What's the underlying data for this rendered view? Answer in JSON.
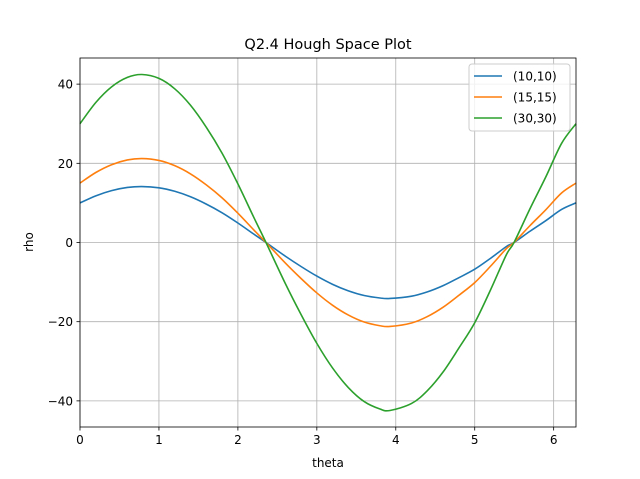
{
  "chart_data": {
    "type": "line",
    "title": "Q2.4 Hough Space Plot",
    "xlabel": "theta",
    "ylabel": "rho",
    "xlim": [
      0,
      6.283
    ],
    "ylim": [
      -46.6,
      46.6
    ],
    "grid": true,
    "legend_position": "top-right",
    "xticks": [
      0,
      1,
      2,
      3,
      4,
      5,
      6
    ],
    "xtick_labels": [
      "0",
      "1",
      "2",
      "3",
      "4",
      "5",
      "6"
    ],
    "yticks": [
      -40,
      -20,
      0,
      20,
      40
    ],
    "ytick_labels": [
      "−40",
      "−20",
      "0",
      "20",
      "40"
    ],
    "series": [
      {
        "name": "(10,10)",
        "color": "#1f77b4",
        "x": [
          0,
          0.2,
          0.4,
          0.6,
          0.785,
          1.0,
          1.2,
          1.4,
          1.6,
          1.8,
          2.0,
          2.2,
          2.356,
          2.6,
          2.8,
          3.0,
          3.2,
          3.4,
          3.6,
          3.8,
          3.927,
          4.2,
          4.4,
          4.6,
          4.8,
          5.0,
          5.2,
          5.4,
          5.498,
          5.7,
          5.9,
          6.1,
          6.283
        ],
        "y": [
          10.0,
          11.79,
          13.1,
          13.9,
          14.14,
          13.82,
          12.94,
          11.55,
          9.7,
          7.51,
          4.93,
          2.14,
          0.0,
          -3.44,
          -6.06,
          -8.49,
          -10.57,
          -12.22,
          -13.39,
          -14.02,
          -14.14,
          -13.55,
          -12.47,
          -10.89,
          -8.88,
          -6.75,
          -4.0,
          -1.04,
          0.0,
          2.84,
          5.51,
          8.34,
          10.0
        ]
      },
      {
        "name": "(15,15)",
        "color": "#ff7f0e",
        "x": [
          0,
          0.2,
          0.4,
          0.6,
          0.785,
          1.0,
          1.2,
          1.4,
          1.6,
          1.8,
          2.0,
          2.2,
          2.356,
          2.6,
          2.8,
          3.0,
          3.2,
          3.4,
          3.6,
          3.8,
          3.927,
          4.2,
          4.4,
          4.6,
          4.8,
          5.0,
          5.2,
          5.4,
          5.498,
          5.7,
          5.9,
          6.1,
          6.283
        ],
        "y": [
          15.0,
          17.68,
          19.65,
          20.85,
          21.21,
          20.73,
          19.41,
          17.33,
          14.55,
          11.27,
          7.4,
          3.21,
          0.0,
          -5.16,
          -9.09,
          -12.74,
          -15.86,
          -18.33,
          -20.09,
          -21.03,
          -21.21,
          -20.33,
          -18.71,
          -16.34,
          -13.32,
          -10.13,
          -6.0,
          -1.56,
          0.0,
          4.26,
          8.27,
          12.51,
          15.0
        ]
      },
      {
        "name": "(30,30)",
        "color": "#2ca02c",
        "x": [
          0,
          0.2,
          0.4,
          0.6,
          0.785,
          1.0,
          1.2,
          1.4,
          1.6,
          1.8,
          2.0,
          2.2,
          2.356,
          2.6,
          2.8,
          3.0,
          3.2,
          3.4,
          3.6,
          3.8,
          3.927,
          4.2,
          4.4,
          4.6,
          4.8,
          5.0,
          5.2,
          5.4,
          5.498,
          5.7,
          5.9,
          6.1,
          6.283
        ],
        "y": [
          30.0,
          35.36,
          39.31,
          41.7,
          42.43,
          41.45,
          38.82,
          34.66,
          29.1,
          22.54,
          14.8,
          6.42,
          0.0,
          -10.32,
          -18.18,
          -25.48,
          -31.72,
          -36.66,
          -40.18,
          -42.06,
          -42.43,
          -40.66,
          -37.42,
          -32.68,
          -26.64,
          -20.26,
          -12.0,
          -3.12,
          0.0,
          8.52,
          16.54,
          25.02,
          30.0
        ]
      }
    ]
  }
}
